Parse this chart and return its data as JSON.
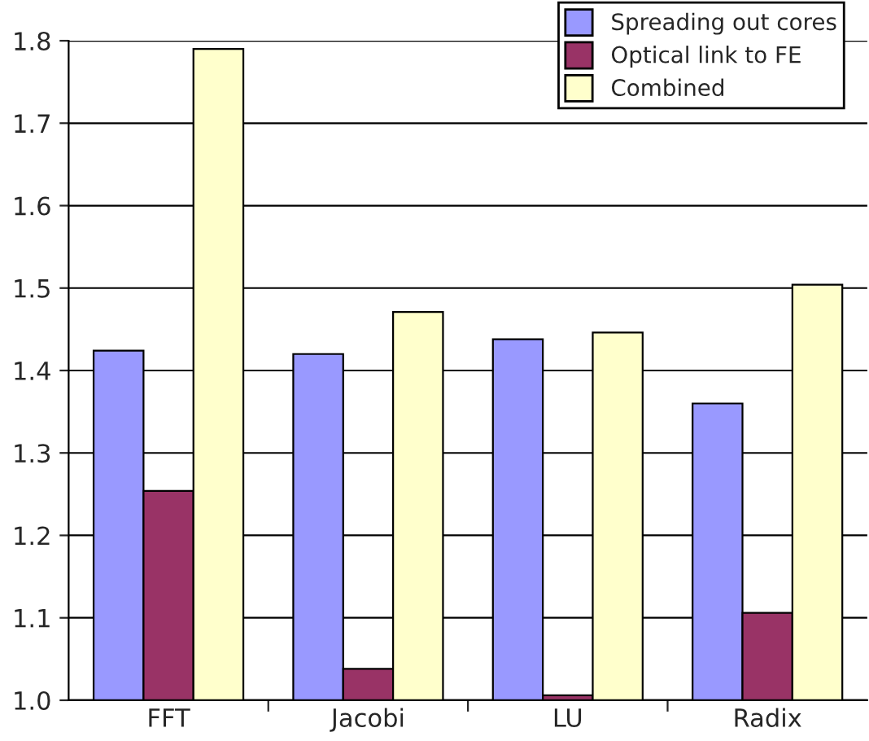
{
  "chart_data": {
    "type": "bar",
    "categories": [
      "FFT",
      "Jacobi",
      "LU",
      "Radix"
    ],
    "series": [
      {
        "name": "Spreading out cores",
        "color": "#9999ff",
        "values": [
          1.424,
          1.42,
          1.438,
          1.36
        ]
      },
      {
        "name": "Optical link to FE",
        "color": "#993366",
        "values": [
          1.254,
          1.038,
          1.006,
          1.106
        ]
      },
      {
        "name": "Combined",
        "color": "#ffffcc",
        "values": [
          1.79,
          1.471,
          1.446,
          1.504
        ]
      }
    ],
    "ylim": [
      1.0,
      1.8
    ],
    "yticks": [
      {
        "value": 1.0,
        "label": "1.0"
      },
      1.1,
      1.2,
      1.3,
      1.4,
      1.5,
      1.6,
      1.7,
      1.8
    ],
    "grid": "y",
    "legend": "top right"
  }
}
